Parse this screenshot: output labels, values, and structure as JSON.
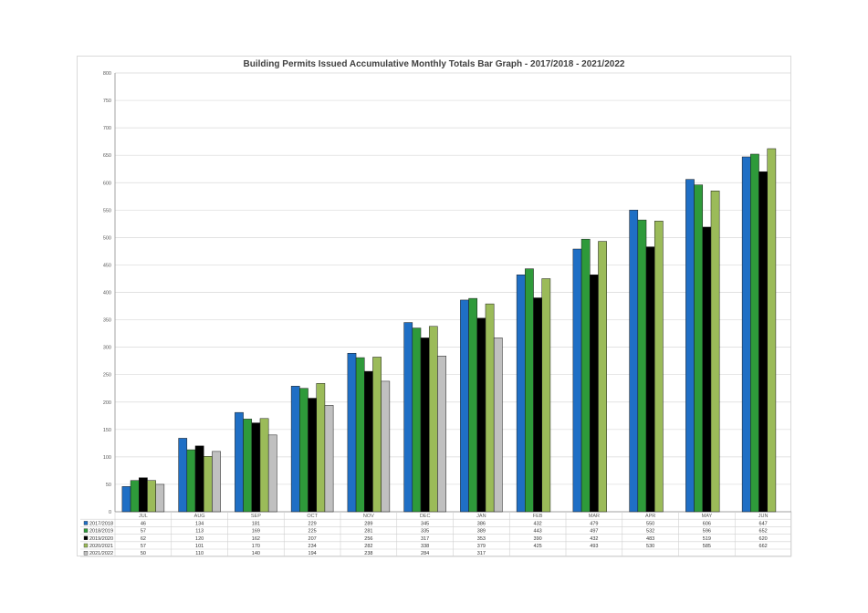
{
  "chart_data": {
    "type": "bar",
    "title": "Building Permits Issued Accumulative Monthly Totals Bar Graph - 2017/2018 - 2021/2022",
    "xlabel": "",
    "ylabel": "",
    "ylim": [
      0,
      800
    ],
    "yticks": [
      0,
      50,
      100,
      150,
      200,
      250,
      300,
      350,
      400,
      450,
      500,
      550,
      600,
      650,
      700,
      750,
      800
    ],
    "grid": true,
    "legend": "data-table-below",
    "categories": [
      "JUL",
      "AUG",
      "SEP",
      "OCT",
      "NOV",
      "DEC",
      "JAN",
      "FEB",
      "MAR",
      "APR",
      "MAY",
      "JUN"
    ],
    "series": [
      {
        "name": "2017/2018",
        "color": "#1f6fc5",
        "values": [
          46,
          134,
          181,
          229,
          289,
          345,
          386,
          432,
          479,
          550,
          606,
          647
        ]
      },
      {
        "name": "2018/2019",
        "color": "#2e9a3a",
        "values": [
          57,
          113,
          169,
          225,
          281,
          335,
          389,
          443,
          497,
          532,
          596,
          652
        ]
      },
      {
        "name": "2019/2020",
        "color": "#000000",
        "values": [
          62,
          120,
          162,
          207,
          256,
          317,
          353,
          390,
          432,
          483,
          519,
          620
        ]
      },
      {
        "name": "2020/2021",
        "color": "#9bbb59",
        "values": [
          57,
          101,
          170,
          234,
          282,
          338,
          379,
          425,
          493,
          530,
          585,
          662
        ]
      },
      {
        "name": "2021/2022",
        "color": "#c0c0c0",
        "values": [
          50,
          110,
          140,
          194,
          238,
          284,
          317,
          null,
          null,
          null,
          null,
          null
        ]
      }
    ]
  }
}
